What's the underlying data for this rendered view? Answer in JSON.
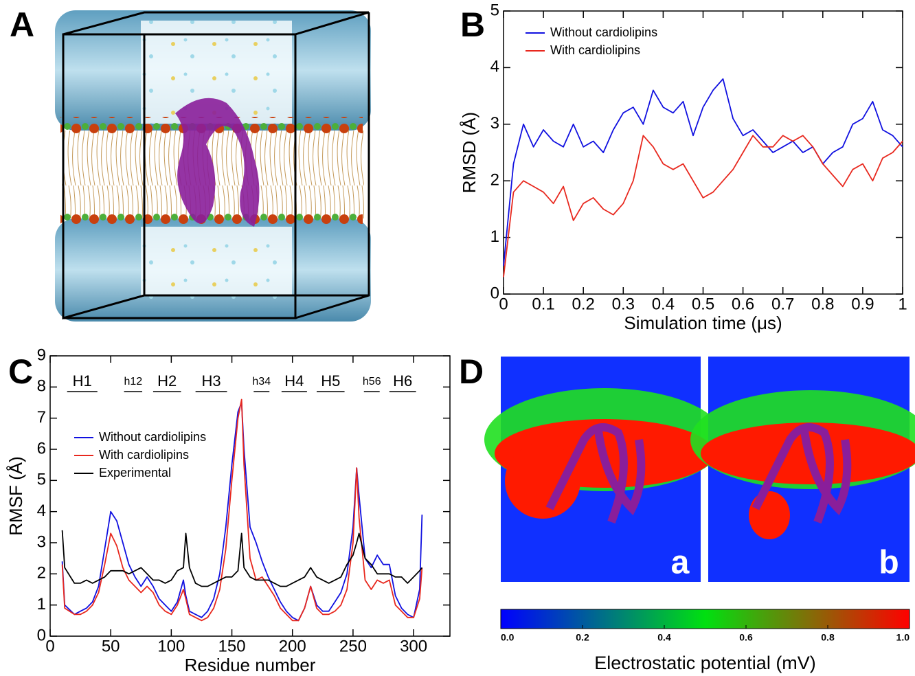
{
  "panel_a": {
    "panel_label": "A"
  },
  "chart_data": [
    {
      "type": "line",
      "panel_label": "B",
      "x_label": "Simulation time (μs)",
      "y_label": "RMSD (Å)",
      "xlim": [
        0,
        1
      ],
      "xticks": [
        0,
        0.1,
        0.2,
        0.3,
        0.4,
        0.5,
        0.6,
        0.7,
        0.8,
        0.9,
        1
      ],
      "ylim": [
        0,
        5
      ],
      "yticks": [
        0,
        1,
        2,
        3,
        4,
        5
      ],
      "legend_position": "upper left",
      "x": [
        0,
        0.025,
        0.05,
        0.075,
        0.1,
        0.125,
        0.15,
        0.175,
        0.2,
        0.225,
        0.25,
        0.275,
        0.3,
        0.325,
        0.35,
        0.375,
        0.4,
        0.425,
        0.45,
        0.475,
        0.5,
        0.525,
        0.55,
        0.575,
        0.6,
        0.625,
        0.65,
        0.675,
        0.7,
        0.725,
        0.75,
        0.775,
        0.8,
        0.825,
        0.85,
        0.875,
        0.9,
        0.925,
        0.95,
        0.975,
        1
      ],
      "series": [
        {
          "name": "Without cardiolipins",
          "color": "#1010e0",
          "values": [
            0.5,
            2.3,
            3.0,
            2.6,
            2.9,
            2.7,
            2.6,
            3.0,
            2.6,
            2.7,
            2.5,
            2.9,
            3.2,
            3.3,
            3.0,
            3.6,
            3.3,
            3.2,
            3.4,
            2.8,
            3.3,
            3.6,
            3.8,
            3.1,
            2.8,
            2.9,
            2.7,
            2.5,
            2.6,
            2.7,
            2.5,
            2.6,
            2.3,
            2.5,
            2.6,
            3.0,
            3.1,
            3.4,
            2.9,
            2.8,
            2.6
          ]
        },
        {
          "name": "With cardiolipins",
          "color": "#e8281e",
          "values": [
            0.3,
            1.8,
            2.0,
            1.9,
            1.8,
            1.6,
            1.9,
            1.3,
            1.6,
            1.7,
            1.5,
            1.4,
            1.6,
            2.0,
            2.8,
            2.6,
            2.3,
            2.2,
            2.3,
            2.0,
            1.7,
            1.8,
            2.0,
            2.2,
            2.5,
            2.8,
            2.6,
            2.6,
            2.8,
            2.7,
            2.8,
            2.6,
            2.3,
            2.1,
            1.9,
            2.2,
            2.3,
            2.0,
            2.4,
            2.5,
            2.7
          ]
        }
      ]
    },
    {
      "type": "line",
      "panel_label": "C",
      "x_label": "Residue number",
      "y_label": "RMSF (Å)",
      "xlim": [
        0,
        330
      ],
      "xticks": [
        0,
        50,
        100,
        150,
        200,
        250,
        300
      ],
      "ylim": [
        0,
        9
      ],
      "yticks": [
        0,
        1,
        2,
        3,
        4,
        5,
        6,
        7,
        8,
        9
      ],
      "legend_position": "center left",
      "annotations": [
        {
          "text": "H1",
          "start": 14,
          "end": 39
        },
        {
          "text": "h12",
          "start": 61,
          "end": 76
        },
        {
          "text": "H2",
          "start": 85,
          "end": 108
        },
        {
          "text": "H3",
          "start": 120,
          "end": 146
        },
        {
          "text": "h34",
          "start": 168,
          "end": 181
        },
        {
          "text": "H4",
          "start": 191,
          "end": 212
        },
        {
          "text": "H5",
          "start": 220,
          "end": 243
        },
        {
          "text": "h56",
          "start": 259,
          "end": 272
        },
        {
          "text": "H6",
          "start": 280,
          "end": 302
        }
      ],
      "x": [
        10,
        12,
        20,
        25,
        30,
        35,
        40,
        45,
        50,
        55,
        60,
        65,
        70,
        75,
        80,
        85,
        90,
        95,
        100,
        105,
        110,
        112,
        115,
        120,
        125,
        130,
        135,
        140,
        145,
        150,
        155,
        158,
        160,
        165,
        170,
        175,
        180,
        185,
        190,
        195,
        200,
        205,
        210,
        215,
        220,
        225,
        230,
        235,
        240,
        245,
        250,
        253,
        255,
        260,
        265,
        270,
        275,
        280,
        285,
        290,
        295,
        300,
        305,
        307
      ],
      "series": [
        {
          "name": "Without cardiolipins",
          "color": "#1010e0",
          "values": [
            2.4,
            1.0,
            0.7,
            0.8,
            0.9,
            1.1,
            1.6,
            2.8,
            4.0,
            3.7,
            3.0,
            2.3,
            1.9,
            1.6,
            1.9,
            1.6,
            1.2,
            1.0,
            0.8,
            1.1,
            1.8,
            1.3,
            0.8,
            0.7,
            0.6,
            0.8,
            1.2,
            2.0,
            3.5,
            5.5,
            7.2,
            7.5,
            6.0,
            3.5,
            3.0,
            2.4,
            1.9,
            1.5,
            1.1,
            0.8,
            0.6,
            0.5,
            0.9,
            1.6,
            1.0,
            0.8,
            0.8,
            1.1,
            1.4,
            2.0,
            3.5,
            5.4,
            4.5,
            2.5,
            2.2,
            2.6,
            2.3,
            2.3,
            1.3,
            0.9,
            0.7,
            0.6,
            1.5,
            3.9
          ]
        },
        {
          "name": "With cardiolipins",
          "color": "#e8281e",
          "values": [
            2.3,
            0.9,
            0.7,
            0.7,
            0.8,
            1.0,
            1.4,
            2.3,
            3.3,
            2.9,
            2.2,
            1.8,
            1.6,
            1.4,
            1.6,
            1.4,
            1.0,
            0.8,
            0.7,
            1.0,
            1.5,
            1.2,
            0.7,
            0.6,
            0.5,
            0.6,
            0.9,
            1.5,
            2.8,
            5.0,
            7.0,
            7.6,
            5.5,
            2.5,
            1.8,
            1.9,
            1.6,
            1.3,
            0.9,
            0.7,
            0.5,
            0.5,
            0.9,
            1.6,
            0.9,
            0.7,
            0.7,
            0.8,
            1.0,
            1.5,
            3.0,
            5.4,
            3.8,
            1.8,
            1.5,
            1.8,
            1.7,
            1.8,
            1.0,
            0.8,
            0.6,
            0.6,
            1.2,
            2.2
          ]
        },
        {
          "name": "Experimental",
          "color": "#000000",
          "values": [
            3.4,
            2.2,
            1.7,
            1.7,
            1.8,
            1.7,
            1.8,
            1.9,
            2.1,
            2.1,
            2.1,
            2.0,
            2.1,
            2.2,
            2.0,
            1.8,
            1.8,
            1.7,
            1.8,
            2.1,
            2.2,
            3.3,
            2.2,
            1.7,
            1.6,
            1.6,
            1.7,
            1.8,
            1.9,
            1.9,
            2.1,
            3.3,
            2.2,
            1.9,
            1.8,
            1.8,
            1.8,
            1.7,
            1.6,
            1.6,
            1.7,
            1.8,
            1.9,
            2.2,
            1.9,
            1.8,
            1.7,
            1.8,
            1.9,
            2.3,
            2.6,
            3.0,
            3.3,
            2.5,
            2.3,
            2.0,
            2.0,
            2.0,
            1.9,
            1.9,
            1.7,
            1.9,
            2.1,
            2.2
          ]
        }
      ]
    },
    {
      "type": "heatmap",
      "panel_label": "D",
      "sublabels": [
        "a",
        "b"
      ],
      "colorbar_label": "Electrostatic potential (mV)",
      "colormap": [
        "#0000ff",
        "#00e010",
        "#ff0000"
      ],
      "clim": [
        0,
        1
      ],
      "cticks": [
        {
          "value": 0,
          "label": "0.0"
        },
        0.2,
        0.4,
        0.6,
        0.8,
        {
          "value": 1,
          "label": "1.0"
        }
      ]
    }
  ]
}
